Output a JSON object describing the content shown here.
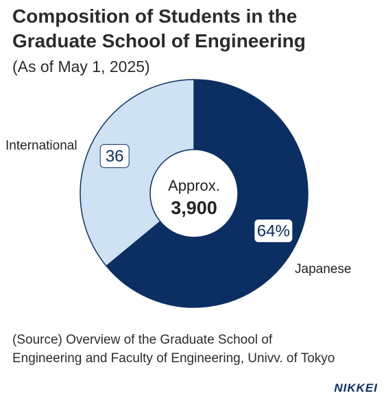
{
  "header": {
    "title_line1": "Composition of Students in the",
    "title_line2": "Graduate School of Engineering",
    "subtitle": "(As of May 1, 2025)"
  },
  "chart_data": {
    "type": "pie",
    "categories": [
      "Japanese",
      "International"
    ],
    "values": [
      64,
      36
    ],
    "value_labels": [
      "64%",
      "36"
    ],
    "colors": [
      "#0c2f63",
      "#cfe2f3"
    ],
    "center_label_line1": "Approx.",
    "center_label_line2": "3,900"
  },
  "footer": {
    "source_line1": "(Source) Overview of the Graduate School of",
    "source_line2": "Engineering and Faculty of Engineering, Univv. of Tokyo",
    "logo": "NIKKEI"
  }
}
